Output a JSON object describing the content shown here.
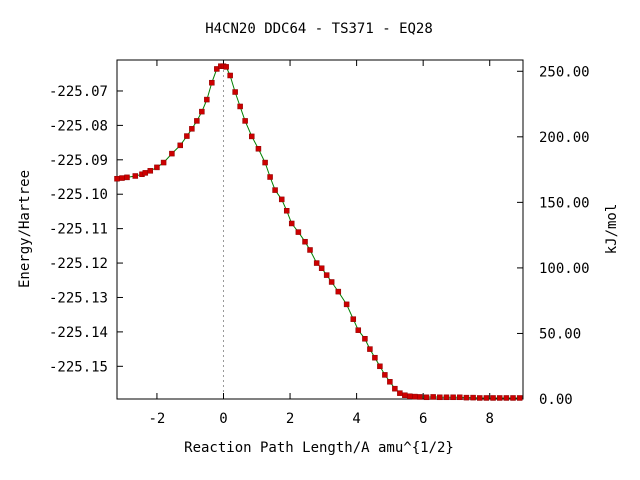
{
  "chart_data": {
    "type": "line",
    "title": "H4CN20   DDC64 - TS371 - EQ28",
    "xlabel": "Reaction Path Length/A amu^{1/2}",
    "ylabel": "Energy/Hartree",
    "y2label": "kJ/mol",
    "xlim": [
      -3.2,
      9.0
    ],
    "ylim": [
      -225.1595,
      -225.061
    ],
    "y2lim": [
      0,
      258.6
    ],
    "x_ticks": [
      -2,
      0,
      2,
      4,
      6,
      8
    ],
    "x_tick_labels": [
      "-2",
      "0",
      "2",
      "4",
      "6",
      "8"
    ],
    "y_ticks": [
      -225.07,
      -225.08,
      -225.09,
      -225.1,
      -225.11,
      -225.12,
      -225.13,
      -225.14,
      -225.15
    ],
    "y_tick_labels": [
      "-225.07",
      "-225.08",
      "-225.09",
      "-225.10",
      "-225.11",
      "-225.12",
      "-225.13",
      "-225.14",
      "-225.15"
    ],
    "y2_ticks": [
      250,
      200,
      150,
      100,
      50,
      0
    ],
    "y2_tick_labels": [
      "250.00",
      "200.00",
      "150.00",
      "100.00",
      "50.00",
      "0.00"
    ],
    "ts_marker_x": 0,
    "grid": false,
    "colors": {
      "line": "#008000",
      "marker": "#cc0000",
      "ts_line": "#999999"
    },
    "series": [
      {
        "x": [
          -3.2,
          -3.05,
          -2.9,
          -2.65,
          -2.45,
          -2.35,
          -2.2,
          -2.0,
          -1.8,
          -1.55,
          -1.3,
          -1.1,
          -0.95,
          -0.8,
          -0.65,
          -0.5,
          -0.35,
          -0.2,
          -0.08,
          0.0,
          0.08,
          0.2,
          0.35,
          0.5,
          0.65,
          0.85,
          1.05,
          1.25,
          1.4,
          1.55,
          1.75,
          1.9,
          2.05,
          2.25,
          2.45,
          2.6,
          2.8,
          2.95,
          3.1,
          3.25,
          3.45,
          3.7,
          3.9,
          4.05,
          4.25,
          4.4,
          4.55,
          4.7,
          4.85,
          5.0,
          5.15,
          5.3,
          5.45,
          5.6,
          5.75,
          5.9,
          6.1,
          6.3,
          6.5,
          6.7,
          6.9,
          7.1,
          7.3,
          7.5,
          7.7,
          7.9,
          8.1,
          8.3,
          8.5,
          8.7,
          8.9
        ],
        "y": [
          -225.0955,
          -225.0953,
          -225.0951,
          -225.0947,
          -225.0942,
          -225.0938,
          -225.0932,
          -225.0922,
          -225.0908,
          -225.0882,
          -225.0858,
          -225.0831,
          -225.081,
          -225.0787,
          -225.076,
          -225.0725,
          -225.0676,
          -225.0636,
          -225.0628,
          -225.0628,
          -225.063,
          -225.0655,
          -225.0703,
          -225.0745,
          -225.0787,
          -225.0832,
          -225.0868,
          -225.0908,
          -225.095,
          -225.0988,
          -225.1015,
          -225.1048,
          -225.1085,
          -225.111,
          -225.1138,
          -225.1162,
          -225.12,
          -225.1215,
          -225.1235,
          -225.1255,
          -225.1283,
          -225.132,
          -225.1363,
          -225.1395,
          -225.142,
          -225.145,
          -225.1475,
          -225.15,
          -225.1525,
          -225.1545,
          -225.1565,
          -225.1578,
          -225.1584,
          -225.1587,
          -225.1588,
          -225.1589,
          -225.159,
          -225.1589,
          -225.159,
          -225.159,
          -225.159,
          -225.159,
          -225.1591,
          -225.1591,
          -225.1592,
          -225.1592,
          -225.1592,
          -225.1592,
          -225.1592,
          -225.1592,
          -225.1592
        ]
      }
    ]
  }
}
